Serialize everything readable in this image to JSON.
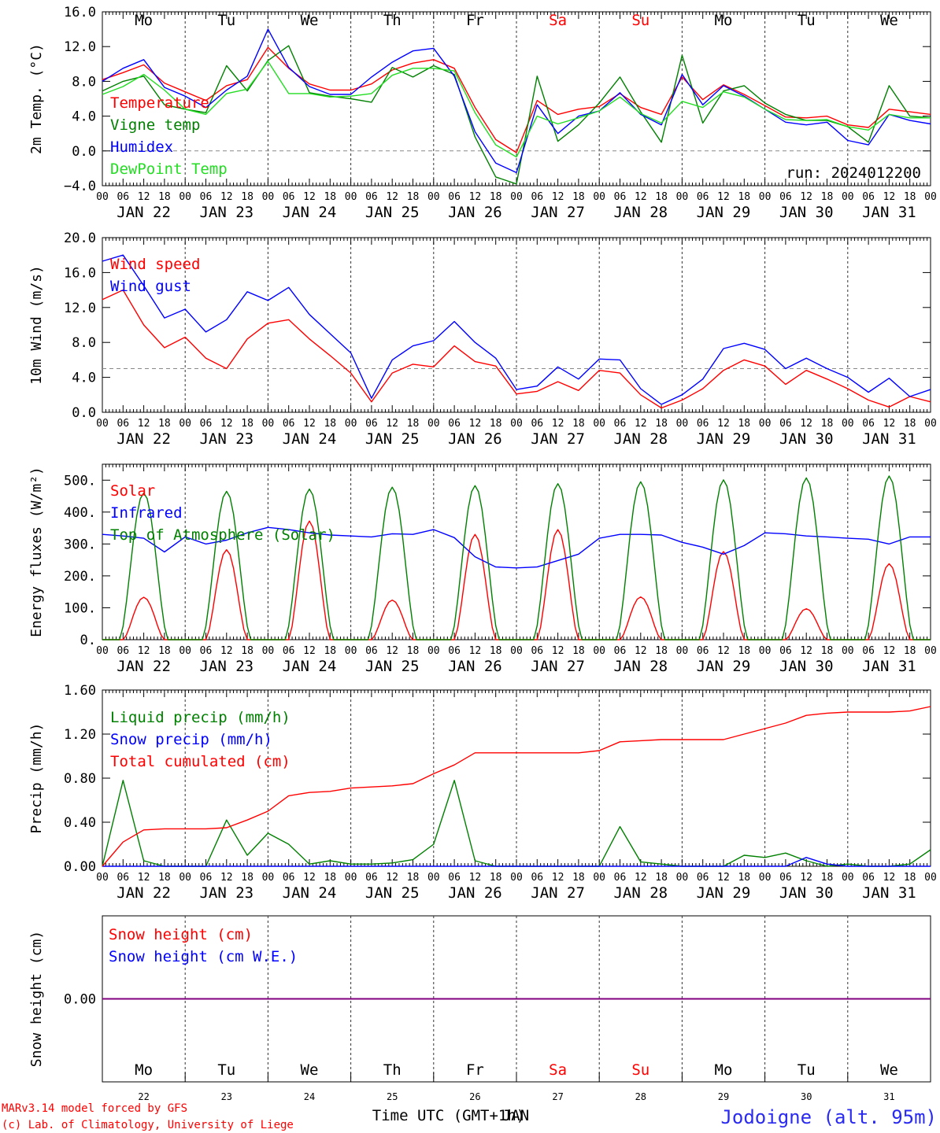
{
  "colors": {
    "red": "#ff0000",
    "green": "#008000",
    "blue": "#0000ff",
    "light_green": "#22dd22",
    "purple": "#800080",
    "grey": "#888888",
    "station_blue": "#2b2bf0"
  },
  "day_labels": [
    "JAN 22",
    "JAN 23",
    "JAN 24",
    "JAN 25",
    "JAN 26",
    "JAN 27",
    "JAN 28",
    "JAN 29",
    "JAN 30",
    "JAN 31"
  ],
  "weekdays": [
    "Mo",
    "Tu",
    "We",
    "Th",
    "Fr",
    "Sa",
    "Su",
    "Mo",
    "Tu",
    "We"
  ],
  "weekend_flags": [
    false,
    false,
    false,
    false,
    false,
    true,
    true,
    false,
    false,
    false
  ],
  "day_numbers": [
    "22",
    "23",
    "24",
    "25",
    "26",
    "27",
    "28",
    "29",
    "30",
    "31"
  ],
  "hour_ticks": [
    "00",
    "06",
    "12",
    "18"
  ],
  "hour_tick_end": "00",
  "footer": {
    "credit_line1": "MARv3.14 model forced by GFS",
    "credit_line2": "(c) Lab. of Climatology, University of Liege",
    "xlabel": "Time UTC (GMT+1h)",
    "xlabel_overlay": "JAN",
    "station": "Jodoigne (alt. 95m)"
  },
  "chart_data": [
    {
      "type": "line",
      "ylabel": "2m Temp. (°C)",
      "ylim": [
        -4,
        16
      ],
      "yticks": [
        "−4.0",
        "0.0",
        "4.0",
        "8.0",
        "12.0",
        "16.0"
      ],
      "ytick_values": [
        -4,
        0,
        4,
        8,
        12,
        16
      ],
      "reference_line": 0,
      "annotation": "run: 2024012200",
      "x_hours": [
        0,
        6,
        12,
        18,
        24,
        30,
        36,
        42,
        48,
        54,
        60,
        66,
        72,
        78,
        84,
        90,
        96,
        102,
        108,
        114,
        120,
        126,
        132,
        138,
        144,
        150,
        156,
        162,
        168,
        174,
        180,
        186,
        192,
        198,
        204,
        210,
        216,
        222,
        228,
        234,
        240
      ],
      "series": [
        {
          "name": "Temperature",
          "color": "#ff0000",
          "values": [
            8.2,
            9.0,
            9.9,
            7.8,
            6.8,
            5.8,
            7.5,
            8.2,
            11.9,
            9.5,
            7.7,
            7.0,
            7.0,
            7.7,
            9.3,
            10.1,
            10.5,
            9.5,
            5.0,
            1.3,
            -0.2,
            5.8,
            4.2,
            4.8,
            5.1,
            6.6,
            5.0,
            4.2,
            8.5,
            5.9,
            7.6,
            6.5,
            5.2,
            3.9,
            3.8,
            4.0,
            3.0,
            2.7,
            4.8,
            4.5,
            4.2
          ]
        },
        {
          "name": "Vigne temp",
          "color": "#008000",
          "values": [
            6.9,
            8.0,
            8.6,
            5.3,
            4.8,
            4.4,
            9.8,
            6.9,
            10.4,
            12.1,
            6.7,
            6.3,
            6.0,
            5.6,
            9.6,
            8.5,
            9.8,
            8.8,
            1.6,
            -3.0,
            -3.8,
            8.6,
            1.1,
            3.0,
            5.5,
            8.5,
            4.5,
            1.0,
            11.0,
            3.2,
            6.9,
            7.5,
            5.5,
            4.2,
            3.5,
            3.5,
            2.8,
            1.0,
            7.5,
            4.0,
            3.8
          ]
        },
        {
          "name": "Humidex",
          "color": "#0000ff",
          "values": [
            8.0,
            9.5,
            10.5,
            7.3,
            6.3,
            5.0,
            7.0,
            8.6,
            14.0,
            9.6,
            7.4,
            6.5,
            6.5,
            8.5,
            10.2,
            11.5,
            11.8,
            8.6,
            2.2,
            -1.4,
            -2.5,
            5.3,
            2.0,
            4.0,
            4.6,
            6.7,
            4.2,
            3.0,
            8.8,
            5.3,
            7.5,
            6.3,
            4.8,
            3.3,
            3.0,
            3.3,
            1.2,
            0.7,
            4.2,
            3.5,
            3.1
          ]
        },
        {
          "name": "DewPoint Temp",
          "color": "#22dd22",
          "values": [
            6.5,
            7.4,
            8.8,
            7.0,
            4.8,
            4.2,
            6.6,
            7.1,
            10.3,
            6.6,
            6.6,
            6.2,
            6.3,
            6.6,
            8.7,
            9.5,
            9.5,
            9.2,
            4.4,
            0.7,
            -0.7,
            4.0,
            3.1,
            3.8,
            4.6,
            6.2,
            4.3,
            3.2,
            5.7,
            5.0,
            6.8,
            6.2,
            4.8,
            3.6,
            3.5,
            3.6,
            2.8,
            2.4,
            4.2,
            3.8,
            3.8
          ]
        }
      ]
    },
    {
      "type": "line",
      "ylabel": "10m Wind (m/s)",
      "ylim": [
        0,
        20
      ],
      "yticks": [
        "0.0",
        "4.0",
        "8.0",
        "12.0",
        "16.0",
        "20.0"
      ],
      "ytick_values": [
        0,
        4,
        8,
        12,
        16,
        20
      ],
      "reference_line": 5,
      "x_hours": [
        0,
        6,
        12,
        18,
        24,
        30,
        36,
        42,
        48,
        54,
        60,
        66,
        72,
        78,
        84,
        90,
        96,
        102,
        108,
        114,
        120,
        126,
        132,
        138,
        144,
        150,
        156,
        162,
        168,
        174,
        180,
        186,
        192,
        198,
        204,
        210,
        216,
        222,
        228,
        234,
        240
      ],
      "series": [
        {
          "name": "Wind speed",
          "color": "#ff0000",
          "values": [
            12.9,
            14.0,
            10.0,
            7.4,
            8.6,
            6.2,
            5.0,
            8.4,
            10.2,
            10.6,
            8.4,
            6.5,
            4.5,
            1.2,
            4.5,
            5.5,
            5.2,
            7.6,
            5.8,
            5.3,
            2.1,
            2.4,
            3.5,
            2.5,
            4.8,
            4.5,
            2.0,
            0.5,
            1.4,
            2.7,
            4.8,
            6.0,
            5.3,
            3.2,
            4.8,
            3.8,
            2.7,
            1.4,
            0.6,
            1.8,
            1.2
          ]
        },
        {
          "name": "Wind gust",
          "color": "#0000ff",
          "values": [
            17.3,
            18.0,
            14.5,
            10.8,
            11.8,
            9.2,
            10.6,
            13.8,
            12.8,
            14.3,
            11.2,
            9.0,
            6.8,
            1.6,
            6.0,
            7.6,
            8.2,
            10.4,
            8.0,
            6.2,
            2.6,
            3.0,
            5.2,
            3.8,
            6.1,
            6.0,
            2.7,
            0.9,
            2.0,
            3.8,
            7.3,
            7.9,
            7.2,
            5.0,
            6.2,
            5.0,
            4.0,
            2.3,
            3.9,
            1.8,
            2.6
          ]
        }
      ]
    },
    {
      "type": "line",
      "ylabel": "Energy fluxes (W/m²)",
      "ylim": [
        0,
        550
      ],
      "yticks": [
        "0.",
        "100.",
        "200.",
        "300.",
        "400.",
        "500."
      ],
      "ytick_values": [
        0,
        100,
        200,
        300,
        400,
        500
      ],
      "day_peaks": {
        "solar": [
          133,
          282,
          372,
          124,
          330,
          345,
          134,
          276,
          97,
          238
        ],
        "top_of_atmosphere": [
          460,
          465,
          472,
          478,
          483,
          489,
          495,
          501,
          507,
          513
        ]
      },
      "x_hours": [
        0,
        6,
        12,
        18,
        24,
        30,
        36,
        42,
        48,
        54,
        60,
        66,
        72,
        78,
        84,
        90,
        96,
        102,
        108,
        114,
        120,
        126,
        132,
        138,
        144,
        150,
        156,
        162,
        168,
        174,
        180,
        186,
        192,
        198,
        204,
        210,
        216,
        222,
        228,
        234,
        240
      ],
      "series": [
        {
          "name": "Solar",
          "color": "#ff0000",
          "values": [
            0,
            0,
            133,
            0,
            0,
            0,
            282,
            0,
            0,
            0,
            372,
            0,
            0,
            0,
            124,
            0,
            0,
            0,
            330,
            0,
            0,
            0,
            345,
            0,
            0,
            0,
            134,
            0,
            0,
            0,
            276,
            0,
            0,
            0,
            97,
            0,
            0,
            0,
            238,
            0,
            0
          ]
        },
        {
          "name": "Infrared",
          "color": "#0000ff",
          "values": [
            330,
            325,
            318,
            275,
            322,
            300,
            312,
            335,
            352,
            345,
            335,
            328,
            325,
            322,
            332,
            330,
            345,
            320,
            260,
            228,
            225,
            228,
            248,
            268,
            318,
            330,
            330,
            328,
            305,
            290,
            268,
            295,
            335,
            332,
            325,
            322,
            318,
            315,
            300,
            322,
            322
          ]
        },
        {
          "name": "Top of Atmosphere (Solar)",
          "color": "#008000",
          "values": [
            0,
            0,
            460,
            0,
            0,
            0,
            465,
            0,
            0,
            0,
            472,
            0,
            0,
            0,
            478,
            0,
            0,
            0,
            483,
            0,
            0,
            0,
            489,
            0,
            0,
            0,
            495,
            0,
            0,
            0,
            501,
            0,
            0,
            0,
            507,
            0,
            0,
            0,
            513,
            0,
            0
          ]
        }
      ]
    },
    {
      "type": "line",
      "ylabel": "Precip (mm/h)",
      "ylim": [
        0,
        1.6
      ],
      "yticks": [
        "0.00",
        "0.40",
        "0.80",
        "1.20",
        "1.60"
      ],
      "ytick_values": [
        0,
        0.4,
        0.8,
        1.2,
        1.6
      ],
      "x_hours": [
        0,
        6,
        12,
        18,
        24,
        30,
        36,
        42,
        48,
        54,
        60,
        66,
        72,
        78,
        84,
        90,
        96,
        102,
        108,
        114,
        120,
        126,
        132,
        138,
        144,
        150,
        156,
        162,
        168,
        174,
        180,
        186,
        192,
        198,
        204,
        210,
        216,
        222,
        228,
        234,
        240
      ],
      "series": [
        {
          "name": "Liquid precip (mm/h)",
          "color": "#008000",
          "values": [
            0,
            0.78,
            0.05,
            0,
            0,
            0,
            0.42,
            0.1,
            0.3,
            0.2,
            0.02,
            0.05,
            0.02,
            0.02,
            0.03,
            0.06,
            0.2,
            0.78,
            0.05,
            0,
            0,
            0,
            0,
            0,
            0,
            0.36,
            0.04,
            0.02,
            0,
            0,
            0,
            0.1,
            0.08,
            0.12,
            0.05,
            0,
            0.02,
            0,
            0,
            0.02,
            0.15
          ]
        },
        {
          "name": "Snow precip (mm/h)",
          "color": "#0000ff",
          "values": [
            0,
            0,
            0,
            0,
            0,
            0,
            0,
            0,
            0,
            0,
            0,
            0,
            0,
            0,
            0,
            0,
            0,
            0,
            0,
            0,
            0,
            0,
            0,
            0,
            0,
            0,
            0,
            0,
            0,
            0,
            0,
            0,
            0,
            0,
            0.08,
            0.02,
            0,
            0,
            0,
            0,
            0
          ]
        },
        {
          "name": "Total cumulated (cm)",
          "color": "#ff0000",
          "values": [
            0,
            0.22,
            0.33,
            0.34,
            0.34,
            0.34,
            0.35,
            0.42,
            0.5,
            0.64,
            0.67,
            0.68,
            0.71,
            0.72,
            0.73,
            0.75,
            0.84,
            0.92,
            1.03,
            1.03,
            1.03,
            1.03,
            1.03,
            1.03,
            1.05,
            1.13,
            1.14,
            1.15,
            1.15,
            1.15,
            1.15,
            1.2,
            1.25,
            1.3,
            1.37,
            1.39,
            1.4,
            1.4,
            1.4,
            1.41,
            1.45
          ]
        }
      ]
    },
    {
      "type": "line",
      "ylabel": "Snow height (cm)",
      "ylim": [
        -1,
        1
      ],
      "yticks": [
        "0.00"
      ],
      "ytick_values": [
        0
      ],
      "x_hours": [
        0,
        240
      ],
      "series": [
        {
          "name": "Snow height (cm)",
          "color": "#ff0000",
          "values": [
            0,
            0
          ]
        },
        {
          "name": "Snow height (cm W.E.)",
          "color": "#0000ff",
          "values": [
            0,
            0
          ]
        }
      ]
    }
  ]
}
